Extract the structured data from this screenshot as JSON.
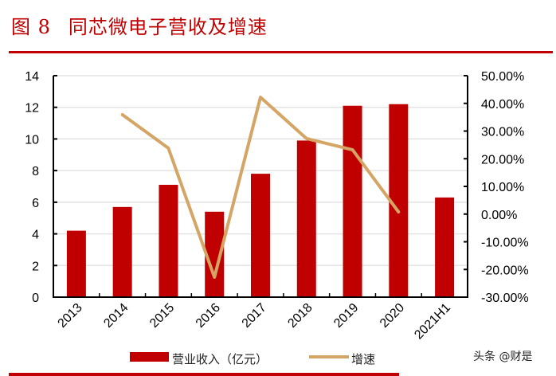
{
  "header": {
    "figure_label": "图 8",
    "title": "同芯微电子营收及增速"
  },
  "watermark": "头条 @财是",
  "colors": {
    "accent": "#c00000",
    "bar": "#c00000",
    "line": "#d4a564",
    "grid": "#e3e3e3",
    "axis": "#000000"
  },
  "chart_data": {
    "type": "bar+line",
    "title": "同芯微电子营收及增速",
    "categories": [
      "2013",
      "2014",
      "2015",
      "2016",
      "2017",
      "2018",
      "2019",
      "2020",
      "2021H1"
    ],
    "series": [
      {
        "name": "营业收入（亿元）",
        "type": "bar",
        "axis": "left",
        "values": [
          4.2,
          5.7,
          7.1,
          5.4,
          7.8,
          9.9,
          12.1,
          12.2,
          6.3
        ]
      },
      {
        "name": "增速",
        "type": "line",
        "axis": "right",
        "values": [
          null,
          35.9,
          23.8,
          -22.8,
          42.2,
          27.3,
          23.2,
          0.8,
          null
        ]
      }
    ],
    "left_axis": {
      "ylim": [
        0,
        14
      ],
      "ticks": [
        "0",
        "2",
        "4",
        "6",
        "8",
        "10",
        "12",
        "14"
      ]
    },
    "right_axis": {
      "ylim": [
        -30,
        50
      ],
      "ticks": [
        "-30.00%",
        "-20.00%",
        "-10.00%",
        "0.00%",
        "10.00%",
        "20.00%",
        "30.00%",
        "40.00%",
        "50.00%"
      ]
    },
    "xlabel": "",
    "ylabel": "",
    "grid": true,
    "legend_position": "bottom",
    "legend": [
      "营业收入（亿元）",
      "增速"
    ]
  }
}
